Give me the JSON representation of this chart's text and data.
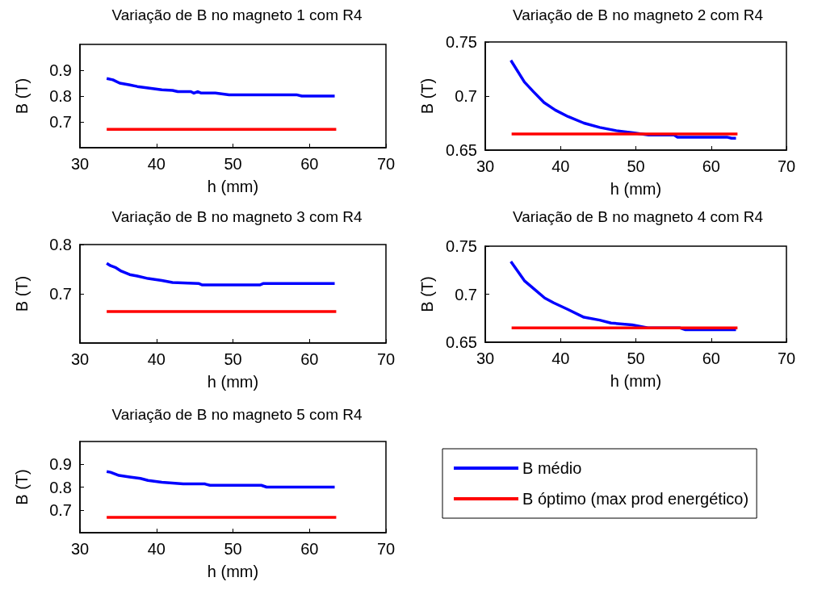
{
  "chart_data": [
    {
      "type": "line",
      "title": "Variação de B no magneto 1 com R4",
      "xlabel": "h (mm)",
      "ylabel": "B (T)",
      "xlim": [
        30,
        70
      ],
      "xticks": [
        30,
        40,
        50,
        60,
        70
      ],
      "ylim": [
        0.6,
        1.0
      ],
      "yticks": [
        0.7,
        0.8,
        0.9
      ],
      "series": [
        {
          "color": "#0000ff",
          "x": [
            33.5,
            34.3,
            35.2,
            36.4,
            37.5,
            39.3,
            40.7,
            42.1,
            42.8,
            44.5,
            44.9,
            45.4,
            45.8,
            47.7,
            49.5,
            58.3,
            59.0,
            63.3
          ],
          "values": [
            0.868,
            0.863,
            0.85,
            0.844,
            0.837,
            0.83,
            0.824,
            0.822,
            0.817,
            0.817,
            0.811,
            0.817,
            0.812,
            0.812,
            0.805,
            0.805,
            0.8,
            0.8
          ]
        },
        {
          "color": "#ff0000",
          "x": [
            33.5,
            63.5
          ],
          "values": [
            0.671,
            0.671
          ]
        }
      ]
    },
    {
      "type": "line",
      "title": "Variação de B no magneto 2 com R4",
      "xlabel": "h (mm)",
      "ylabel": "B (T)",
      "xlim": [
        30,
        70
      ],
      "xticks": [
        30,
        40,
        50,
        60,
        70
      ],
      "ylim": [
        0.65,
        0.75
      ],
      "yticks": [
        0.65,
        0.7,
        0.75
      ],
      "series": [
        {
          "color": "#0000ff",
          "x": [
            33.4,
            35.2,
            36.4,
            37.8,
            39.3,
            41.0,
            43.1,
            45.2,
            47.4,
            49.6,
            51.7,
            55.1,
            55.5,
            62.1,
            62.7,
            63.3
          ],
          "values": [
            0.733,
            0.713,
            0.704,
            0.694,
            0.687,
            0.681,
            0.675,
            0.671,
            0.668,
            0.666,
            0.664,
            0.664,
            0.662,
            0.662,
            0.661,
            0.661
          ]
        },
        {
          "color": "#ff0000",
          "x": [
            33.5,
            63.5
          ],
          "values": [
            0.665,
            0.665
          ]
        }
      ]
    },
    {
      "type": "line",
      "title": "Variação de B no magneto 3 com R4",
      "xlabel": "h (mm)",
      "ylabel": "B (T)",
      "xlim": [
        30,
        70
      ],
      "xticks": [
        30,
        40,
        50,
        60,
        70
      ],
      "ylim": [
        0.6,
        0.8
      ],
      "yticks": [
        0.7,
        0.8
      ],
      "series": [
        {
          "color": "#0000ff",
          "x": [
            33.5,
            34.0,
            34.7,
            35.4,
            36.5,
            37.5,
            38.9,
            40.7,
            42.1,
            45.5,
            46.0,
            53.5,
            54.0,
            63.3
          ],
          "values": [
            0.762,
            0.757,
            0.753,
            0.746,
            0.739,
            0.736,
            0.731,
            0.727,
            0.723,
            0.721,
            0.718,
            0.718,
            0.721,
            0.721
          ]
        },
        {
          "color": "#ff0000",
          "x": [
            33.5,
            63.5
          ],
          "values": [
            0.664,
            0.664
          ]
        }
      ]
    },
    {
      "type": "line",
      "title": "Variação de B no magneto 4 com R4",
      "xlabel": "h (mm)",
      "ylabel": "B (T)",
      "xlim": [
        30,
        70
      ],
      "xticks": [
        30,
        40,
        50,
        60,
        70
      ],
      "ylim": [
        0.65,
        0.75
      ],
      "yticks": [
        0.65,
        0.7,
        0.75
      ],
      "series": [
        {
          "color": "#0000ff",
          "x": [
            33.4,
            35.2,
            36.4,
            37.9,
            39.1,
            41.0,
            43.1,
            45.2,
            46.7,
            49.5,
            51.6,
            55.8,
            56.6,
            63.3
          ],
          "values": [
            0.734,
            0.714,
            0.706,
            0.696,
            0.691,
            0.684,
            0.676,
            0.673,
            0.67,
            0.668,
            0.665,
            0.665,
            0.663,
            0.663
          ]
        },
        {
          "color": "#ff0000",
          "x": [
            33.5,
            63.5
          ],
          "values": [
            0.665,
            0.665
          ]
        }
      ]
    },
    {
      "type": "line",
      "title": "Variação de B no magneto 5 com R4",
      "xlabel": "h (mm)",
      "ylabel": "B (T)",
      "xlim": [
        30,
        70
      ],
      "xticks": [
        30,
        40,
        50,
        60,
        70
      ],
      "ylim": [
        0.6,
        1.0
      ],
      "yticks": [
        0.7,
        0.8,
        0.9
      ],
      "legend": "right",
      "series": [
        {
          "name": "B médio",
          "color": "#0000ff",
          "x": [
            33.5,
            34.0,
            35.1,
            36.5,
            37.9,
            38.9,
            40.7,
            42.8,
            43.5,
            46.3,
            47.0,
            53.7,
            54.4,
            63.3
          ],
          "values": [
            0.868,
            0.865,
            0.851,
            0.844,
            0.838,
            0.829,
            0.821,
            0.816,
            0.814,
            0.814,
            0.808,
            0.808,
            0.8,
            0.8
          ]
        },
        {
          "name": "B óptimo (max prod energético)",
          "color": "#ff0000",
          "x": [
            33.5,
            63.5
          ],
          "values": [
            0.667,
            0.667
          ]
        }
      ]
    }
  ]
}
